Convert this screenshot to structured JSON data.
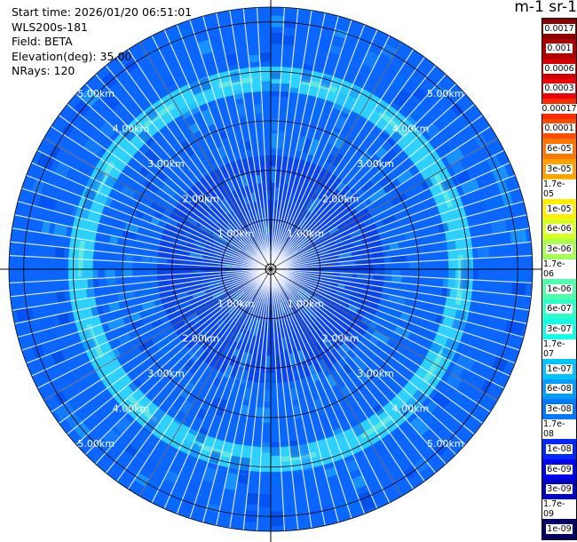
{
  "info": {
    "start_time": "Start time: 2026/01/20 06:51:01",
    "instrument": "WLS200s-181",
    "field": "Field: BETA",
    "elevation": "Elevation(deg): 35.00",
    "nrays": "NRays: 120"
  },
  "colorbar": {
    "title": "m-1 sr-1",
    "ticks": [
      "0.0017",
      "0.001",
      "0.0006",
      "0.0003",
      "0.00017",
      "0.0001",
      "6e-05",
      "3e-05",
      "1.7e-05",
      "1e-05",
      "6e-06",
      "3e-06",
      "1.7e-06",
      "1e-06",
      "6e-07",
      "3e-07",
      "1.7e-07",
      "1e-07",
      "6e-08",
      "3e-08",
      "1.7e-08",
      "1e-08",
      "6e-09",
      "3e-09",
      "1.7e-09",
      "1e-09"
    ],
    "colors": [
      "#8b0000",
      "#b00000",
      "#d20000",
      "#f00000",
      "#ff2b00",
      "#ff4d00",
      "#ff7700",
      "#ffa200",
      "#ffc800",
      "#ffee00",
      "#d8ff1f",
      "#a8ff4e",
      "#7dff7a",
      "#4effaa",
      "#2bffcc",
      "#11ffe6",
      "#00e9ff",
      "#00c4ff",
      "#009dff",
      "#0078ff",
      "#0050ff",
      "#0028ff",
      "#0000f2",
      "#0000c4",
      "#000096",
      "#00006b"
    ]
  },
  "chart_data": {
    "type": "ppi",
    "title": "",
    "field": "BETA",
    "units": "m-1 sr-1",
    "n_rays": 120,
    "elevation_deg": 35.0,
    "max_range_km": 5.3,
    "range_ring_labels": [
      "1.00km",
      "2.00km",
      "3.00km",
      "4.00km",
      "5.00km"
    ],
    "ring_ranges_km": [
      1,
      2,
      3,
      4,
      5
    ],
    "label_angles_deg": [
      45,
      135,
      225,
      315
    ],
    "background_color": "#0a66ff",
    "ring_feature": {
      "radius_km_min": 3.6,
      "radius_km_max": 4.1,
      "color": "#32e4ff",
      "peak_color": "#8cf7c8"
    },
    "inner_core": {
      "radius_km": 2.3,
      "color": "#0b3ae6"
    }
  }
}
